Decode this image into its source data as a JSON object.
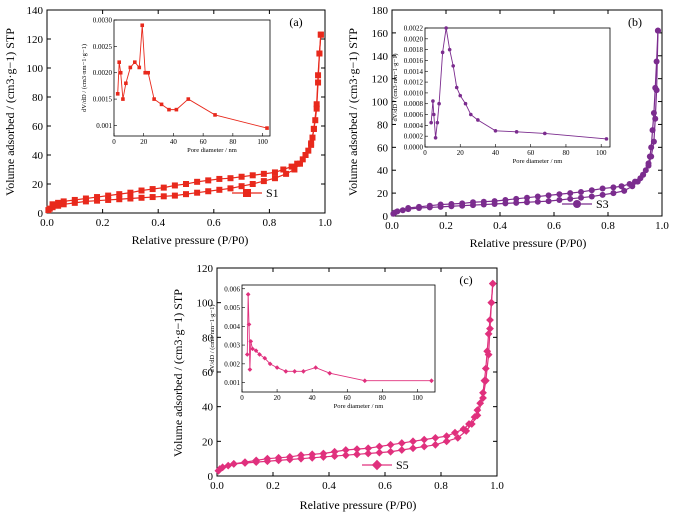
{
  "chart_data": [
    {
      "type": "line",
      "panel_label": "(a)",
      "xlabel": "Relative pressure (P/P0)",
      "ylabel": "Volume adsorbed / (cm3·g−1) STP",
      "xlim": [
        0,
        1.0
      ],
      "ylim": [
        0,
        140
      ],
      "xticks": [
        "0.0",
        "0.2",
        "0.4",
        "0.6",
        "0.8",
        "1.0"
      ],
      "yticks": [
        "0",
        "20",
        "40",
        "60",
        "80",
        "100",
        "120",
        "140"
      ],
      "color": "#e8291c",
      "marker": "square",
      "legend": "S1",
      "legend_position": "bottom-right",
      "series": [
        {
          "branch": "adsorption",
          "x": [
            0.005,
            0.01,
            0.02,
            0.04,
            0.06,
            0.1,
            0.14,
            0.18,
            0.22,
            0.26,
            0.3,
            0.34,
            0.38,
            0.42,
            0.46,
            0.5,
            0.54,
            0.58,
            0.62,
            0.66,
            0.7,
            0.74,
            0.78,
            0.82,
            0.86,
            0.89,
            0.91,
            0.93,
            0.95,
            0.96,
            0.97,
            0.975,
            0.98,
            0.985
          ],
          "y": [
            2,
            3,
            4,
            5,
            6,
            7,
            8,
            8.5,
            9,
            9.5,
            10,
            10.5,
            11,
            11.5,
            12,
            13,
            14,
            15,
            16,
            17,
            18.5,
            20,
            22,
            24,
            27,
            30,
            34,
            40,
            48,
            58,
            75,
            95,
            110,
            123
          ]
        },
        {
          "branch": "desorption",
          "x": [
            0.985,
            0.98,
            0.975,
            0.97,
            0.965,
            0.96,
            0.955,
            0.95,
            0.94,
            0.93,
            0.92,
            0.9,
            0.88,
            0.85,
            0.82,
            0.78,
            0.74,
            0.7,
            0.66,
            0.62,
            0.58,
            0.54,
            0.5,
            0.46,
            0.42,
            0.38,
            0.34,
            0.3,
            0.26,
            0.22,
            0.18,
            0.14,
            0.1,
            0.06,
            0.04,
            0.02
          ],
          "y": [
            123,
            110,
            90,
            72,
            64,
            58,
            52,
            47,
            43,
            40,
            37,
            34,
            32,
            30,
            28,
            27,
            26,
            25,
            24,
            23.5,
            22.5,
            21.5,
            20,
            19,
            17.5,
            16.5,
            15.5,
            14,
            13,
            12,
            11,
            10,
            9,
            8,
            7,
            6
          ]
        }
      ],
      "inset": {
        "type": "line",
        "xlabel": "Pore diameter / nm",
        "ylabel": "dV/dD / (cm3·nm−1·g−1)",
        "xlim": [
          0,
          105
        ],
        "ylim": [
          0.0008,
          0.003
        ],
        "xticks": [
          "0",
          "20",
          "40",
          "60",
          "80",
          "100"
        ],
        "yticks": [
          "0.001",
          "0.0015",
          "0.0020",
          "0.0025",
          "0.0030"
        ],
        "x": [
          2.5,
          3.5,
          4.5,
          6,
          8,
          11,
          14,
          17,
          19,
          21,
          23,
          27,
          32,
          37,
          42,
          50,
          68,
          103
        ],
        "y": [
          0.0016,
          0.0022,
          0.002,
          0.0015,
          0.0018,
          0.0021,
          0.0022,
          0.0021,
          0.0029,
          0.002,
          0.002,
          0.0015,
          0.0014,
          0.0013,
          0.0013,
          0.0015,
          0.0012,
          0.00095
        ]
      }
    },
    {
      "type": "line",
      "panel_label": "(b)",
      "xlabel": "Relative pressure (P/P0)",
      "ylabel": "Volume adsorbed / (cm3·g−1) STP",
      "xlim": [
        0,
        1.0
      ],
      "ylim": [
        0,
        180
      ],
      "xticks": [
        "0.0",
        "0.2",
        "0.4",
        "0.6",
        "0.8",
        "1.0"
      ],
      "yticks": [
        "0",
        "20",
        "40",
        "60",
        "80",
        "100",
        "120",
        "140",
        "160",
        "180"
      ],
      "color": "#7b2c8e",
      "marker": "circle",
      "legend": "S3",
      "legend_position": "bottom-right",
      "series": [
        {
          "branch": "adsorption",
          "x": [
            0.005,
            0.01,
            0.02,
            0.04,
            0.06,
            0.1,
            0.14,
            0.18,
            0.22,
            0.26,
            0.3,
            0.34,
            0.38,
            0.42,
            0.46,
            0.5,
            0.54,
            0.58,
            0.62,
            0.66,
            0.7,
            0.74,
            0.78,
            0.82,
            0.86,
            0.89,
            0.91,
            0.93,
            0.95,
            0.96,
            0.97,
            0.975,
            0.98,
            0.985
          ],
          "y": [
            2,
            3,
            4,
            5,
            6,
            7,
            7.5,
            8,
            8.5,
            9,
            9.5,
            10,
            10.5,
            11,
            11.5,
            12,
            12.5,
            13,
            14,
            15,
            16,
            17,
            18.5,
            20,
            22,
            26,
            30,
            36,
            44,
            52,
            65,
            85,
            110,
            162
          ]
        },
        {
          "branch": "desorption",
          "x": [
            0.985,
            0.98,
            0.975,
            0.97,
            0.965,
            0.96,
            0.955,
            0.95,
            0.94,
            0.93,
            0.92,
            0.9,
            0.88,
            0.85,
            0.82,
            0.78,
            0.74,
            0.7,
            0.66,
            0.62,
            0.58,
            0.54,
            0.5,
            0.46,
            0.42,
            0.38,
            0.34,
            0.3,
            0.26,
            0.22,
            0.18,
            0.14,
            0.1,
            0.06
          ],
          "y": [
            162,
            135,
            112,
            90,
            75,
            60,
            52,
            46,
            40,
            36,
            33,
            30,
            28,
            26,
            25,
            24,
            22.5,
            21,
            20,
            19,
            18,
            17,
            16,
            15,
            14,
            13,
            12.5,
            12,
            11,
            10.5,
            10,
            9,
            8,
            7
          ]
        }
      ],
      "inset": {
        "type": "line",
        "xlabel": "Pore diameter / nm",
        "ylabel": "dV/dD / (cm3·nm−1·g−1)",
        "xlim": [
          0,
          105
        ],
        "ylim": [
          0,
          0.0022
        ],
        "xticks": [
          "0",
          "20",
          "40",
          "60",
          "80",
          "100"
        ],
        "yticks": [
          "0.0000",
          "0.0002",
          "0.0004",
          "0.0006",
          "0.0008",
          "0.0010",
          "0.0012",
          "0.0014",
          "0.0016",
          "0.0018",
          "0.0020",
          "0.0022"
        ],
        "x": [
          3.5,
          4.5,
          5,
          6,
          7,
          8,
          10,
          12,
          14,
          16,
          18,
          20,
          23,
          26,
          30,
          40,
          52,
          68,
          103
        ],
        "y": [
          0.00045,
          0.00085,
          0.0006,
          0.00017,
          0.00045,
          0.0008,
          0.00175,
          0.0022,
          0.0018,
          0.0015,
          0.0011,
          0.00095,
          0.0008,
          0.0006,
          0.0005,
          0.0003,
          0.00028,
          0.00025,
          0.00015
        ]
      }
    },
    {
      "type": "line",
      "panel_label": "(c)",
      "xlabel": "Relative pressure (P/P0)",
      "ylabel": "Volume adsorbed / (cm3·g−1) STP",
      "xlim": [
        0,
        1.0
      ],
      "ylim": [
        0,
        120
      ],
      "xticks": [
        "0.0",
        "0.2",
        "0.4",
        "0.6",
        "0.8",
        "1.0"
      ],
      "yticks": [
        "0",
        "20",
        "40",
        "60",
        "80",
        "100",
        "120"
      ],
      "color": "#e0307d",
      "marker": "diamond",
      "legend": "S5",
      "legend_position": "bottom-right",
      "series": [
        {
          "branch": "adsorption",
          "x": [
            0.005,
            0.01,
            0.02,
            0.04,
            0.06,
            0.1,
            0.14,
            0.18,
            0.22,
            0.26,
            0.3,
            0.34,
            0.38,
            0.42,
            0.46,
            0.5,
            0.54,
            0.58,
            0.62,
            0.66,
            0.7,
            0.74,
            0.78,
            0.82,
            0.86,
            0.89,
            0.91,
            0.93,
            0.95,
            0.96,
            0.97,
            0.975,
            0.98,
            0.985
          ],
          "y": [
            3,
            4,
            5,
            6,
            7,
            7.5,
            8,
            8.5,
            9,
            9.5,
            10,
            10.5,
            11,
            11.5,
            12,
            12.5,
            13,
            13.5,
            14,
            15,
            16,
            17,
            18,
            20,
            22,
            26,
            30,
            35,
            45,
            55,
            70,
            85,
            100,
            111
          ]
        },
        {
          "branch": "desorption",
          "x": [
            0.985,
            0.98,
            0.975,
            0.97,
            0.965,
            0.96,
            0.955,
            0.95,
            0.94,
            0.93,
            0.92,
            0.9,
            0.88,
            0.85,
            0.82,
            0.78,
            0.74,
            0.7,
            0.66,
            0.62,
            0.58,
            0.54,
            0.5,
            0.46,
            0.42,
            0.38,
            0.34,
            0.3,
            0.26,
            0.22,
            0.18,
            0.14,
            0.1,
            0.06
          ],
          "y": [
            111,
            100,
            90,
            82,
            72,
            62,
            55,
            48,
            42,
            38,
            34,
            30,
            27,
            25,
            23,
            22,
            21,
            20,
            19,
            18,
            17,
            16,
            15.5,
            15,
            14,
            13,
            12.5,
            12,
            11,
            10.5,
            10,
            9,
            8,
            7
          ]
        }
      ],
      "inset": {
        "type": "line",
        "xlabel": "Pore diameter / nm",
        "ylabel": "dV/dD / (cm3·nm−1·g−1)",
        "xlim": [
          0,
          110
        ],
        "ylim": [
          0.0005,
          0.0062
        ],
        "xticks": [
          "0",
          "20",
          "40",
          "60",
          "80",
          "100"
        ],
        "yticks": [
          "0.001",
          "0.002",
          "0.003",
          "0.004",
          "0.005",
          "0.006"
        ],
        "x": [
          3,
          3.5,
          4,
          4.5,
          5,
          6,
          8,
          10,
          13,
          16,
          20,
          25,
          30,
          35,
          42,
          50,
          70,
          108
        ],
        "y": [
          0.0025,
          0.0057,
          0.0041,
          0.0017,
          0.0032,
          0.0028,
          0.0027,
          0.0025,
          0.0023,
          0.002,
          0.0018,
          0.0016,
          0.0016,
          0.0016,
          0.0018,
          0.0015,
          0.0011,
          0.0011
        ]
      }
    }
  ]
}
